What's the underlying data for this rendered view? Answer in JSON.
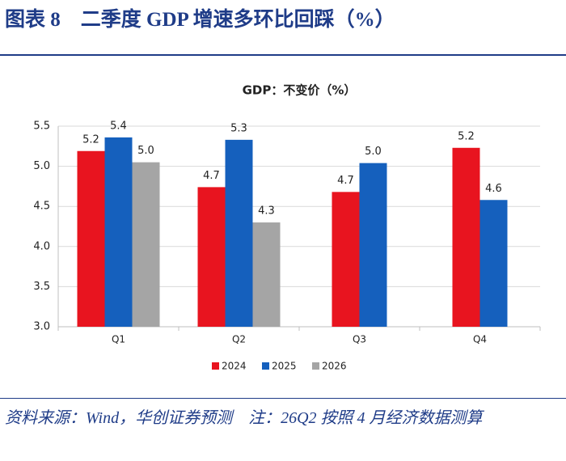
{
  "figure_title": "图表 8　二季度 GDP 增速多环比回踩（%）",
  "source": "资料来源：Wind，华创证券预测　注：26Q2 按照 4 月经济数据测算",
  "chart_data": {
    "type": "bar",
    "title": "GDP：不变价（%）",
    "categories": [
      "Q1",
      "Q2",
      "Q3",
      "Q4"
    ],
    "series": [
      {
        "name": "2024",
        "color": "#e8141f",
        "values": [
          5.19,
          4.74,
          4.68,
          5.23
        ],
        "value_labels": [
          "5.2",
          "4.7",
          "4.7",
          "5.2"
        ]
      },
      {
        "name": "2025",
        "color": "#1560bd",
        "values": [
          5.36,
          5.33,
          5.04,
          4.58
        ],
        "value_labels": [
          "5.4",
          "5.3",
          "5.0",
          "4.6"
        ]
      },
      {
        "name": "2026",
        "color": "#a5a5a5",
        "values": [
          5.05,
          4.3,
          null,
          null
        ],
        "value_labels": [
          "5.0",
          "4.3",
          null,
          null
        ]
      }
    ],
    "ylim": [
      3.0,
      5.5
    ],
    "yticks": [
      {
        "value": 3.0,
        "label": "3.0"
      },
      3.5,
      {
        "value": 4.0,
        "label": "4.0"
      },
      4.5,
      {
        "value": 5.0,
        "label": "5.0"
      },
      5.5
    ],
    "grid": true,
    "legend": "bottom"
  }
}
